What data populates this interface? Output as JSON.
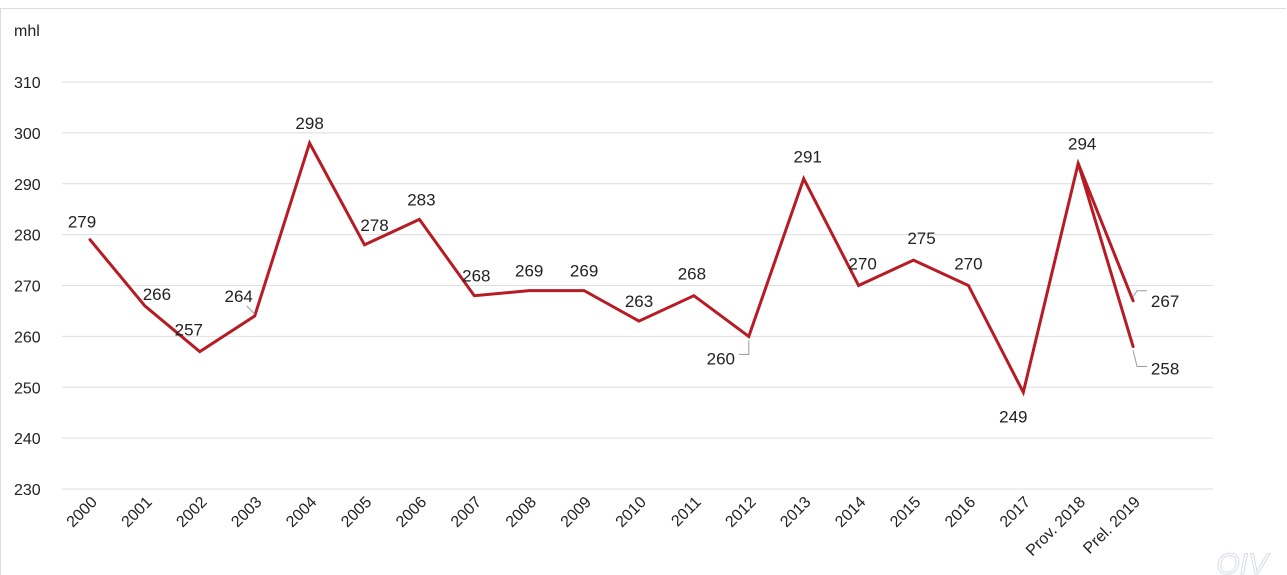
{
  "chart_data": {
    "type": "line",
    "ylabel": "mhl",
    "ylim": [
      230,
      310
    ],
    "yticks": [
      230,
      240,
      250,
      260,
      270,
      280,
      290,
      300,
      310
    ],
    "grid": true,
    "categories": [
      "2000",
      "2001",
      "2002",
      "2003",
      "2004",
      "2005",
      "2006",
      "2007",
      "2008",
      "2009",
      "2010",
      "2011",
      "2012",
      "2013",
      "2014",
      "2015",
      "2016",
      "2017",
      "Prov. 2018",
      "Prel. 2019"
    ],
    "series": [
      {
        "values": [
          279,
          266,
          257,
          264,
          298,
          278,
          283,
          268,
          269,
          269,
          263,
          268,
          260,
          291,
          270,
          275,
          270,
          249,
          294,
          267
        ],
        "color": "#b71c24"
      },
      {
        "values": [
          null,
          null,
          null,
          null,
          null,
          null,
          null,
          null,
          null,
          null,
          null,
          null,
          null,
          null,
          null,
          null,
          null,
          null,
          294,
          258
        ],
        "color": "#b71c24"
      }
    ],
    "data_labels": [
      "279",
      "266",
      "257",
      "264",
      "298",
      "278",
      "283",
      "268",
      "269",
      "269",
      "263",
      "268",
      "260",
      "291",
      "270",
      "275",
      "270",
      "249",
      "294",
      "267"
    ],
    "extra_label": "258"
  },
  "watermark": "OIV"
}
